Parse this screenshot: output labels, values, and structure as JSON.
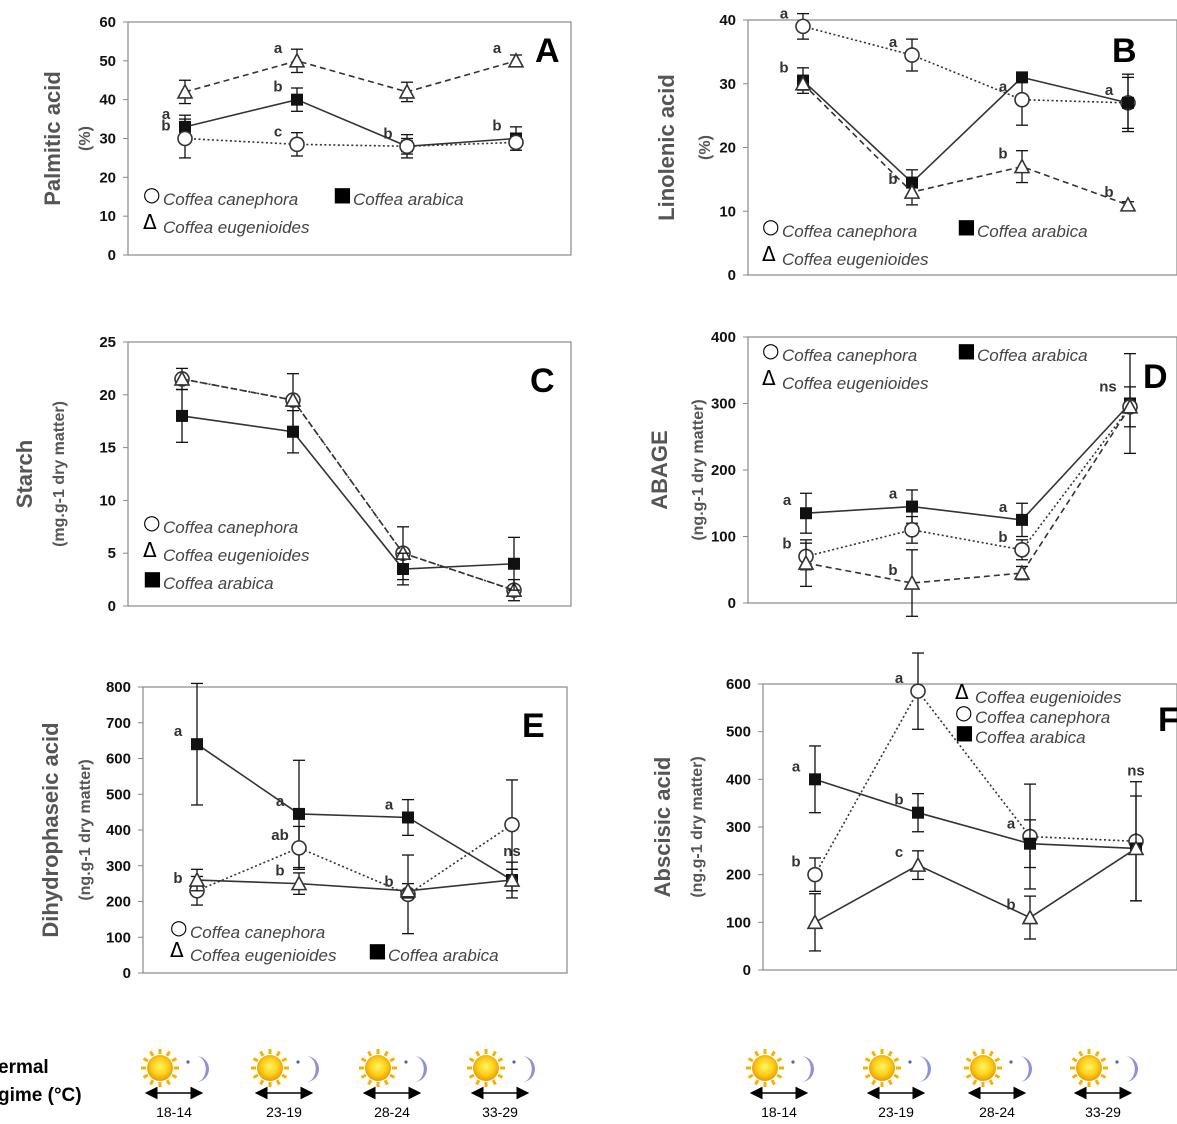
{
  "chart_data": [
    {
      "panel": "A",
      "type": "line",
      "ylabel": "Palmitic acid",
      "yunit": "(%)",
      "ylim": [
        0,
        60
      ],
      "yticks": [
        0,
        10,
        20,
        30,
        40,
        50,
        60
      ],
      "categories": [
        "18-14",
        "23-19",
        "28-24",
        "33-29"
      ],
      "series": [
        {
          "name": "Coffea eugenioides",
          "marker": "triangle",
          "line": "dashed",
          "values": [
            42,
            50,
            42,
            50
          ],
          "err": [
            3,
            3,
            2.5,
            1.5
          ],
          "sig": [
            "",
            "a",
            "",
            "a"
          ]
        },
        {
          "name": "Coffea arabica",
          "marker": "square",
          "line": "solid",
          "values": [
            33,
            40,
            28,
            30
          ],
          "err": [
            3,
            3,
            3,
            3
          ],
          "sig": [
            "a",
            "b",
            "b",
            "b"
          ]
        },
        {
          "name": "Coffea canephora",
          "marker": "circle",
          "line": "dotted",
          "values": [
            30,
            28.5,
            28,
            29
          ],
          "err": [
            5,
            3,
            2,
            2
          ],
          "sig": [
            "b",
            "c",
            "",
            ""
          ]
        }
      ],
      "legend_order": [
        "Coffea canephora",
        "Coffea arabica",
        "Coffea eugenioides"
      ],
      "ns": ""
    },
    {
      "panel": "B",
      "type": "line",
      "ylabel": "Linolenic acid",
      "yunit": "(%)",
      "ylim": [
        0,
        40
      ],
      "yticks": [
        0,
        10,
        20,
        30,
        40
      ],
      "categories": [
        "18-14",
        "23-19",
        "28-24",
        "33-29"
      ],
      "series": [
        {
          "name": "Coffea canephora",
          "marker": "circle",
          "line": "dotted",
          "values": [
            39,
            34.5,
            27.5,
            27
          ],
          "err": [
            2,
            2.5,
            4,
            4
          ],
          "sig": [
            "a",
            "a",
            "a",
            "a"
          ]
        },
        {
          "name": "Coffea arabica",
          "marker": "square",
          "line": "solid",
          "values": [
            30.5,
            14.5,
            31,
            27
          ],
          "err": [
            2,
            2,
            0,
            4.5
          ],
          "sig": [
            "b",
            "",
            "",
            ""
          ]
        },
        {
          "name": "Coffea eugenioides",
          "marker": "triangle",
          "line": "dashed",
          "values": [
            30,
            13,
            17,
            11
          ],
          "err": [
            1,
            2,
            2.5,
            0.5
          ],
          "sig": [
            "",
            "b",
            "b",
            "b"
          ]
        }
      ],
      "legend_order": [
        "Coffea canephora",
        "Coffea arabica",
        "Coffea eugenioides"
      ],
      "ns": ""
    },
    {
      "panel": "C",
      "type": "line",
      "ylabel": "Starch",
      "yunit": "(mg.g-1 dry matter)",
      "ylim": [
        0,
        25
      ],
      "yticks": [
        0,
        5,
        10,
        15,
        20,
        25
      ],
      "categories": [
        "18-14",
        "23-19",
        "28-24",
        "33-29"
      ],
      "series": [
        {
          "name": "Coffea canephora",
          "marker": "circle",
          "line": "dotted",
          "values": [
            21.5,
            19.5,
            5,
            1.5
          ],
          "err": [
            1,
            2.5,
            2.5,
            1
          ],
          "sig": [
            "",
            "",
            "",
            ""
          ]
        },
        {
          "name": "Coffea eugenioides",
          "marker": "triangle",
          "line": "dashed",
          "values": [
            21.5,
            19.5,
            5,
            1.5
          ],
          "err": [
            0,
            0,
            0,
            0
          ],
          "sig": [
            "",
            "",
            "",
            ""
          ]
        },
        {
          "name": "Coffea arabica",
          "marker": "square",
          "line": "solid",
          "values": [
            18,
            16.5,
            3.5,
            4
          ],
          "err": [
            2.5,
            2,
            1.5,
            2.5
          ],
          "sig": [
            "",
            "",
            "",
            ""
          ]
        }
      ],
      "legend_order": [
        "Coffea canephora",
        "Coffea eugenioides",
        "Coffea arabica"
      ],
      "ns": ""
    },
    {
      "panel": "D",
      "type": "line",
      "ylabel": "ABAGE",
      "yunit": "(ng.g-1 dry matter)",
      "ylim": [
        0,
        400
      ],
      "yticks": [
        0,
        100,
        200,
        300,
        400
      ],
      "categories": [
        "18-14",
        "23-19",
        "28-24",
        "33-29"
      ],
      "series": [
        {
          "name": "Coffea arabica",
          "marker": "square",
          "line": "solid",
          "values": [
            135,
            145,
            125,
            300
          ],
          "err": [
            30,
            25,
            25,
            75
          ],
          "sig": [
            "a",
            "a",
            "a",
            ""
          ]
        },
        {
          "name": "Coffea canephora",
          "marker": "circle",
          "line": "dotted",
          "values": [
            70,
            110,
            80,
            295
          ],
          "err": [
            20,
            20,
            15,
            30
          ],
          "sig": [
            "b",
            "",
            "b",
            ""
          ]
        },
        {
          "name": "Coffea eugenioides",
          "marker": "triangle",
          "line": "dashed",
          "values": [
            60,
            30,
            45,
            295
          ],
          "err": [
            35,
            50,
            10,
            0
          ],
          "sig": [
            "",
            "b",
            "",
            ""
          ]
        }
      ],
      "legend_order": [
        "Coffea canephora",
        "Coffea arabica",
        "Coffea eugenioides"
      ],
      "ns": "ns"
    },
    {
      "panel": "E",
      "type": "line",
      "ylabel": "Dihydrophaseic acid",
      "yunit": "(ng.g-1 dry matter)",
      "ylim": [
        0,
        800
      ],
      "yticks": [
        0,
        100,
        200,
        300,
        400,
        500,
        600,
        700,
        800
      ],
      "categories": [
        "18-14",
        "23-19",
        "28-24",
        "33-29"
      ],
      "series": [
        {
          "name": "Coffea arabica",
          "marker": "square",
          "line": "solid",
          "values": [
            640,
            445,
            435,
            260
          ],
          "err": [
            170,
            150,
            50,
            50
          ],
          "sig": [
            "a",
            "a",
            "a",
            "ns"
          ]
        },
        {
          "name": "Coffea canephora",
          "marker": "circle",
          "line": "dotted",
          "values": [
            230,
            350,
            220,
            415
          ],
          "err": [
            40,
            60,
            110,
            125
          ],
          "sig": [
            "b",
            "ab",
            "b",
            ""
          ]
        },
        {
          "name": "Coffea eugenioides",
          "marker": "triangle",
          "line": "solid",
          "values": [
            260,
            250,
            230,
            260
          ],
          "err": [
            30,
            30,
            20,
            30
          ],
          "sig": [
            "",
            "b",
            "",
            ""
          ]
        }
      ],
      "legend_order": [
        "Coffea canephora",
        "Coffea eugenioides",
        "Coffea arabica"
      ],
      "ns": ""
    },
    {
      "panel": "F",
      "type": "line",
      "ylabel": "Abscisic acid",
      "yunit": "(ng.g-1 dry matter)",
      "ylim": [
        0,
        600
      ],
      "yticks": [
        0,
        100,
        200,
        300,
        400,
        500,
        600
      ],
      "categories": [
        "18-14",
        "23-19",
        "28-24",
        "33-29"
      ],
      "series": [
        {
          "name": "Coffea canephora",
          "marker": "circle",
          "line": "dotted",
          "values": [
            200,
            585,
            280,
            270
          ],
          "err": [
            35,
            80,
            110,
            125
          ],
          "sig": [
            "b",
            "a",
            "a",
            "ns"
          ]
        },
        {
          "name": "Coffea arabica",
          "marker": "square",
          "line": "solid",
          "values": [
            400,
            330,
            265,
            255
          ],
          "err": [
            70,
            40,
            50,
            110
          ],
          "sig": [
            "a",
            "b",
            "",
            ""
          ]
        },
        {
          "name": "Coffea eugenioides",
          "marker": "triangle",
          "line": "solid",
          "values": [
            100,
            220,
            110,
            255
          ],
          "err": [
            60,
            30,
            45,
            0
          ],
          "sig": [
            "",
            "c",
            "b",
            ""
          ]
        }
      ],
      "legend_order": [
        "Coffea eugenioides",
        "Coffea canephora",
        "Coffea arabica"
      ],
      "ns": ""
    }
  ],
  "regime": {
    "title_line1": "ermal",
    "title_line2": "gime (°C)",
    "labels": [
      "18-14",
      "23-19",
      "28-24",
      "33-29"
    ]
  }
}
